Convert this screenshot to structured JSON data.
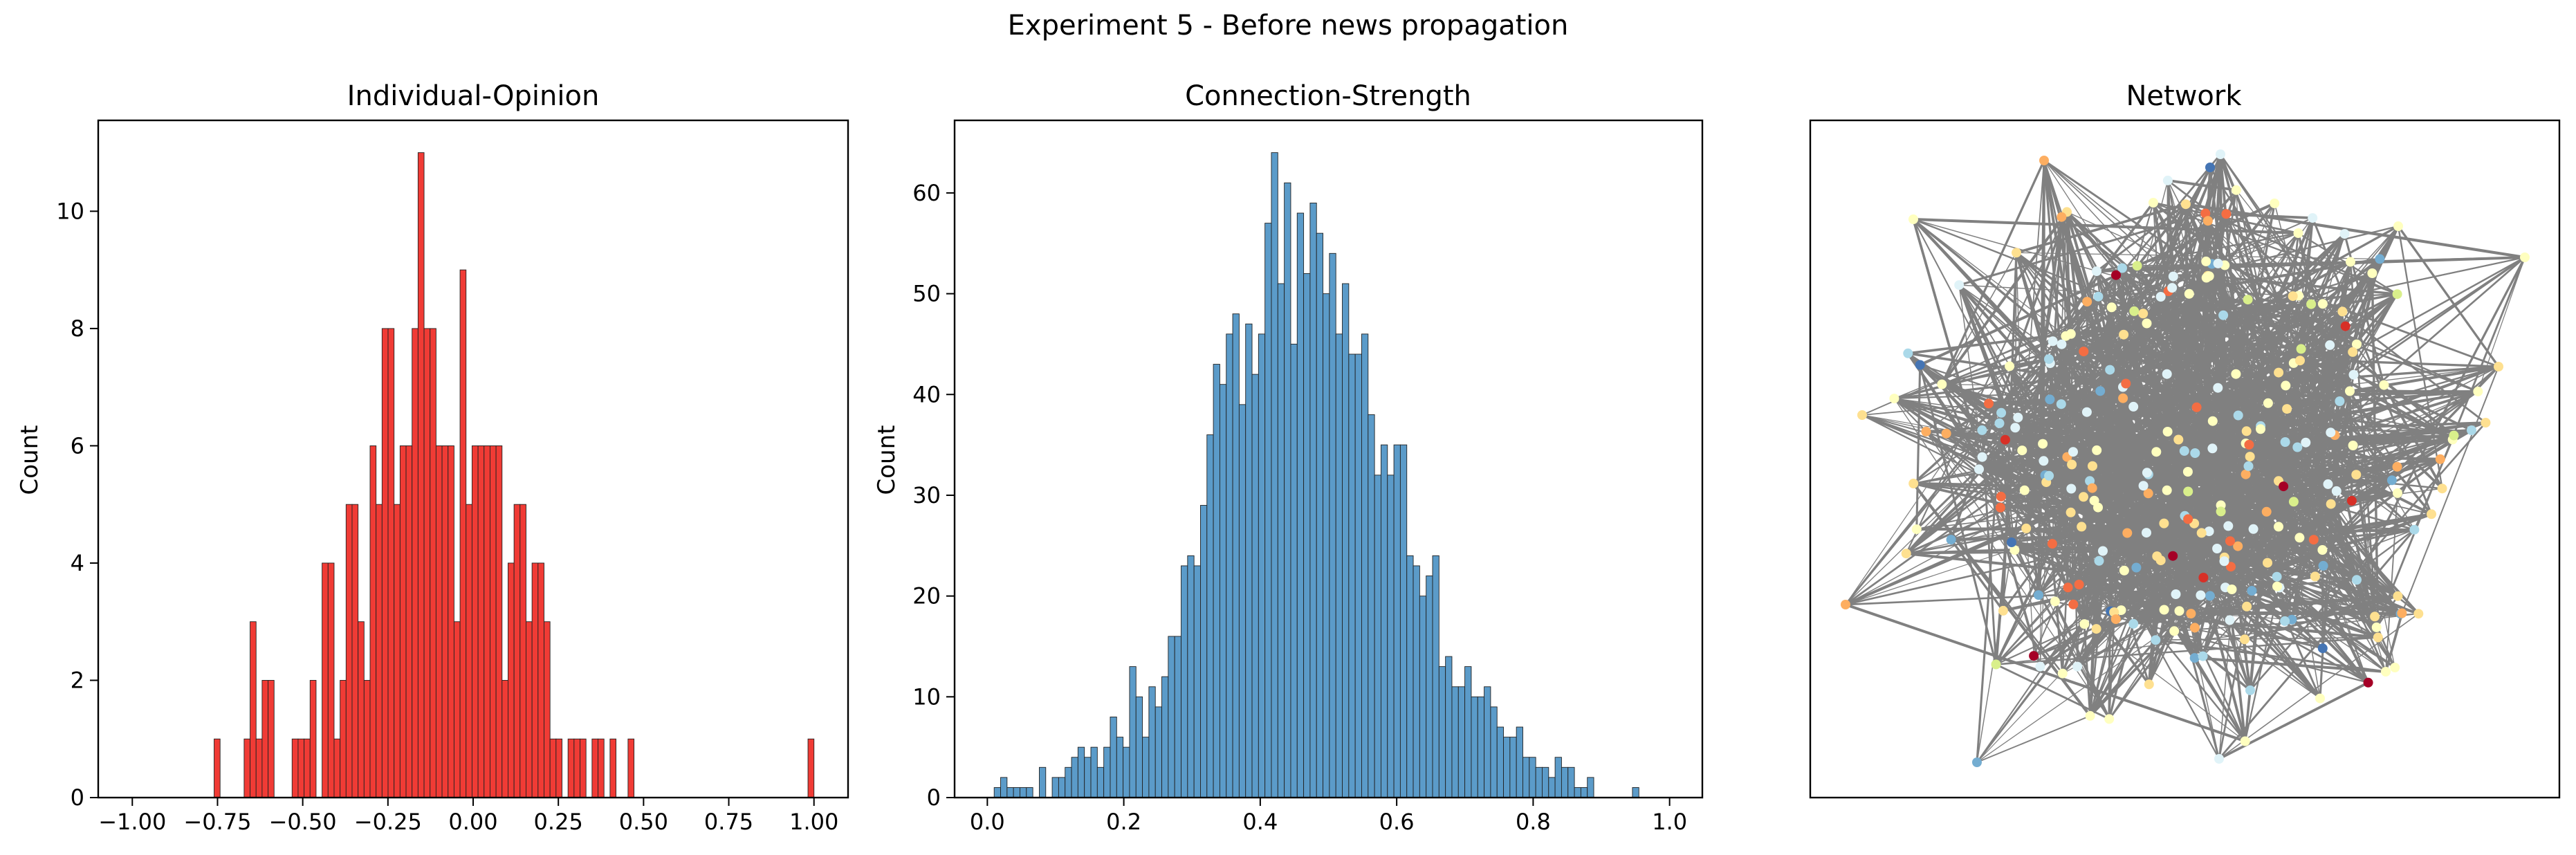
{
  "figure": {
    "suptitle": "Experiment 5 - Before news propagation"
  },
  "colors": {
    "opinion_bar": "#f03b35",
    "strength_bar": "#5b9bc9",
    "bar_edge": "#222222",
    "network_edge": "#808080",
    "node_palette": [
      "#a50026",
      "#d73027",
      "#f46d43",
      "#fdae61",
      "#fee090",
      "#ffffbf",
      "#e0f3f8",
      "#abd9e9",
      "#74add1",
      "#4575b4",
      "#d9ef8b"
    ]
  },
  "chart_data": [
    {
      "type": "bar",
      "title": "Individual-Opinion",
      "ylabel": "Count",
      "xlabel": "",
      "xlim": [
        -1.1,
        1.1
      ],
      "ylim": [
        0,
        11.55
      ],
      "xticks": [
        -1.0,
        -0.75,
        -0.5,
        -0.25,
        0.0,
        0.25,
        0.5,
        0.75,
        1.0
      ],
      "xtick_labels": [
        "−1.00",
        "−0.75",
        "−0.50",
        "−0.25",
        "0.00",
        "0.25",
        "0.50",
        "0.75",
        "1.00"
      ],
      "yticks": [
        0,
        2,
        4,
        6,
        8,
        10
      ],
      "ytick_labels": [
        "0",
        "2",
        "4",
        "6",
        "8",
        "10"
      ],
      "bin_start": -0.76,
      "bin_width": 0.0176,
      "values": [
        1,
        0,
        0,
        0,
        0,
        1,
        3,
        1,
        2,
        2,
        0,
        0,
        0,
        1,
        1,
        1,
        2,
        0,
        4,
        4,
        1,
        2,
        5,
        5,
        3,
        2,
        6,
        5,
        8,
        8,
        5,
        6,
        6,
        8,
        11,
        8,
        8,
        6,
        6,
        6,
        3,
        9,
        5,
        6,
        6,
        6,
        6,
        6,
        2,
        4,
        5,
        5,
        3,
        4,
        4,
        3,
        1,
        1,
        0,
        1,
        1,
        1,
        0,
        1,
        1,
        0,
        1,
        0,
        0,
        1,
        0,
        0,
        0,
        0,
        0,
        0,
        0,
        0,
        0,
        0,
        0,
        0,
        0,
        0,
        0,
        0,
        0,
        0,
        0,
        0,
        0,
        0,
        0,
        0,
        0,
        0,
        0,
        0,
        0,
        1
      ],
      "grid": false,
      "legend": "none"
    },
    {
      "type": "bar",
      "title": "Connection-Strength",
      "ylabel": "Count",
      "xlabel": "",
      "xlim": [
        -0.048,
        1.048
      ],
      "ylim": [
        0,
        67.2
      ],
      "xticks": [
        0.0,
        0.2,
        0.4,
        0.6,
        0.8,
        1.0
      ],
      "xtick_labels": [
        "0.0",
        "0.2",
        "0.4",
        "0.6",
        "0.8",
        "1.0"
      ],
      "yticks": [
        0,
        10,
        20,
        30,
        40,
        50,
        60
      ],
      "ytick_labels": [
        "0",
        "10",
        "20",
        "30",
        "40",
        "50",
        "60"
      ],
      "bin_start": 0.01,
      "bin_width": 0.00945,
      "values": [
        1,
        2,
        1,
        1,
        1,
        1,
        0,
        3,
        0,
        2,
        2,
        3,
        4,
        5,
        4,
        5,
        3,
        5,
        8,
        6,
        5,
        13,
        10,
        6,
        11,
        9,
        12,
        16,
        16,
        23,
        24,
        23,
        29,
        36,
        43,
        41,
        46,
        48,
        39,
        47,
        42,
        46,
        57,
        64,
        51,
        61,
        45,
        58,
        52,
        59,
        56,
        50,
        54,
        46,
        51,
        44,
        44,
        46,
        38,
        32,
        35,
        32,
        35,
        35,
        24,
        23,
        20,
        22,
        24,
        13,
        14,
        11,
        11,
        13,
        10,
        10,
        11,
        9,
        7,
        6,
        6,
        7,
        4,
        4,
        3,
        3,
        2,
        4,
        3,
        3,
        1,
        1,
        2,
        0,
        0,
        0,
        0,
        0,
        0,
        1
      ],
      "grid": false,
      "legend": "none"
    }
  ],
  "network": {
    "title": "Network"
  }
}
